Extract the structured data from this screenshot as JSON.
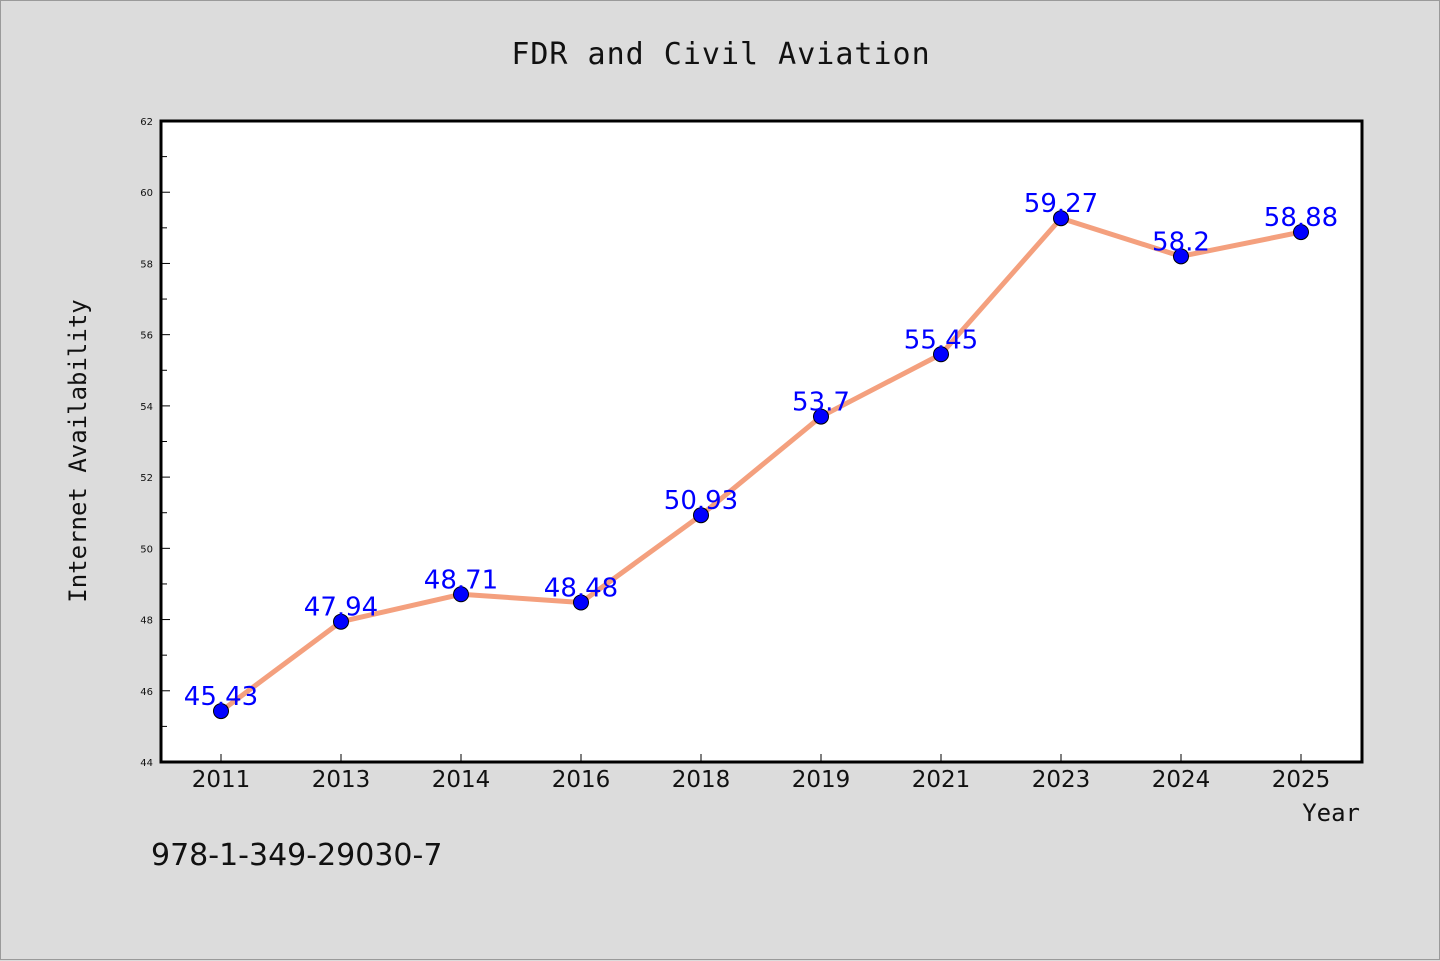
{
  "chart_data": {
    "type": "line",
    "title": "FDR and Civil Aviation",
    "xlabel": "Year",
    "ylabel": "Internet Availability",
    "categories": [
      "2011",
      "2013",
      "2014",
      "2016",
      "2018",
      "2019",
      "2021",
      "2023",
      "2024",
      "2025"
    ],
    "series": [
      {
        "values": [
          45.43,
          47.94,
          48.71,
          48.48,
          50.93,
          53.7,
          55.45,
          59.27,
          58.2,
          58.88
        ],
        "data_labels": [
          "45.43",
          "47.94",
          "48.71",
          "48.48",
          "50.93",
          "53.7",
          "55.45",
          "59.27",
          "58.2",
          "58.88"
        ],
        "line_color": "#f4a07e",
        "marker_color": "#0000ff"
      }
    ],
    "ylim": [
      44,
      62
    ],
    "yticks": [
      "44",
      "46",
      "48",
      "50",
      "52",
      "54",
      "56",
      "58",
      "60",
      "62"
    ],
    "grid": false,
    "legend": "none"
  },
  "footer_text": "978-1-349-29030-7",
  "colors": {
    "background": "#dcdcdc",
    "plot_background": "#ffffff",
    "label_color": "#0000ff"
  }
}
